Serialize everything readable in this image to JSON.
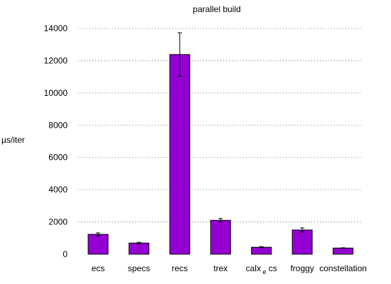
{
  "chart_data": {
    "type": "bar",
    "title": "parallel build",
    "ylabel": "µs/iter",
    "xlabel": "",
    "ylim": [
      0,
      14000
    ],
    "yticks": [
      0,
      2000,
      4000,
      6000,
      8000,
      10000,
      12000,
      14000
    ],
    "grid": "horizontal-dotted",
    "bar_color": "#9400d3",
    "categories": [
      "ecs",
      "specs",
      "recs",
      "trex",
      "calx_e cs",
      "froggy",
      "constellation"
    ],
    "values": [
      1230,
      690,
      12380,
      2100,
      430,
      1500,
      380
    ],
    "errors": [
      90,
      50,
      1350,
      110,
      40,
      130,
      20
    ]
  },
  "calx_label": {
    "pre": "calx",
    "sub": "e",
    "post": "cs"
  }
}
